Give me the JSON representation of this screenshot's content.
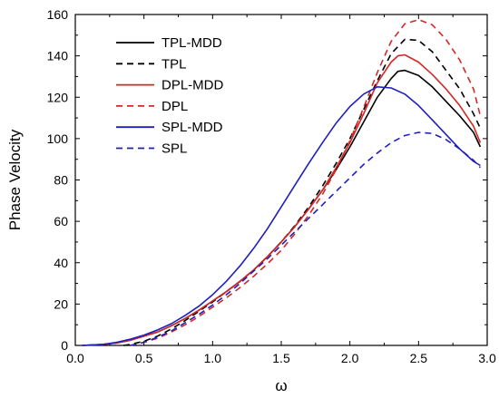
{
  "chart_data": {
    "type": "line",
    "xlabel": "ω",
    "ylabel": "Phase Velocity",
    "xlim": [
      0.0,
      3.0
    ],
    "ylim": [
      0,
      160
    ],
    "xticks": [
      "0.0",
      "0.5",
      "1.0",
      "1.5",
      "2.0",
      "2.5",
      "3.0"
    ],
    "yticks": [
      "0",
      "20",
      "40",
      "60",
      "80",
      "100",
      "120",
      "140",
      "160"
    ],
    "grid": false,
    "legend_position": "top-left",
    "series": [
      {
        "name": "TPL-MDD",
        "color": "#000000",
        "dash": "solid",
        "x": [
          0.05,
          0.2,
          0.3,
          0.4,
          0.5,
          0.6,
          0.7,
          0.8,
          0.9,
          1.0,
          1.1,
          1.2,
          1.3,
          1.4,
          1.5,
          1.6,
          1.7,
          1.8,
          1.9,
          2.0,
          2.1,
          2.2,
          2.3,
          2.35,
          2.4,
          2.5,
          2.6,
          2.7,
          2.8,
          2.9,
          2.95
        ],
        "y": [
          0,
          0.5,
          1.2,
          2.5,
          4.5,
          6.5,
          9.5,
          13,
          17,
          21.5,
          26,
          31,
          36.5,
          43,
          50,
          57.5,
          66,
          75,
          85,
          96,
          108,
          120,
          129,
          132.5,
          133,
          130.5,
          125,
          118,
          111,
          103,
          96
        ]
      },
      {
        "name": "TPL",
        "color": "#000000",
        "dash": "dashed",
        "x": [
          0.35,
          0.4,
          0.5,
          0.6,
          0.7,
          0.8,
          0.9,
          1.0,
          1.1,
          1.2,
          1.3,
          1.4,
          1.5,
          1.6,
          1.7,
          1.8,
          1.9,
          2.0,
          2.1,
          2.2,
          2.3,
          2.4,
          2.5,
          2.6,
          2.7,
          2.8,
          2.9,
          2.95
        ],
        "y": [
          0,
          0.5,
          2,
          4.5,
          8,
          12,
          16.5,
          21,
          26,
          31,
          36.5,
          43,
          50,
          58,
          67,
          77,
          88,
          100,
          114,
          128,
          141,
          148,
          147.5,
          142,
          133,
          124,
          112,
          105
        ]
      },
      {
        "name": "DPL-MDD",
        "color": "#d62728",
        "dash": "solid",
        "x": [
          0.05,
          0.2,
          0.3,
          0.4,
          0.5,
          0.6,
          0.7,
          0.8,
          0.9,
          1.0,
          1.1,
          1.2,
          1.3,
          1.4,
          1.5,
          1.6,
          1.7,
          1.8,
          1.9,
          2.0,
          2.1,
          2.2,
          2.3,
          2.35,
          2.4,
          2.5,
          2.6,
          2.7,
          2.8,
          2.9,
          2.95
        ],
        "y": [
          0,
          0.5,
          1.2,
          2.5,
          4.5,
          6.5,
          9.5,
          13,
          17,
          21.5,
          26,
          31,
          36.5,
          43,
          50,
          57.5,
          66,
          75,
          86,
          98,
          112,
          127,
          137,
          140,
          140.5,
          137,
          131,
          124,
          116,
          106,
          98
        ]
      },
      {
        "name": "DPL",
        "color": "#d62728",
        "dash": "dashed",
        "x": [
          0.4,
          0.5,
          0.6,
          0.7,
          0.8,
          0.9,
          1.0,
          1.1,
          1.2,
          1.3,
          1.4,
          1.5,
          1.6,
          1.7,
          1.8,
          1.9,
          2.0,
          2.1,
          2.2,
          2.3,
          2.4,
          2.5,
          2.6,
          2.7,
          2.8,
          2.9,
          2.95
        ],
        "y": [
          0,
          1.5,
          3.5,
          6.5,
          10,
          14,
          18.5,
          23,
          28,
          33.5,
          39.5,
          46,
          54,
          63,
          73,
          85,
          99,
          115,
          132,
          147,
          155.5,
          157.5,
          155,
          148,
          138,
          124,
          111
        ]
      },
      {
        "name": "SPL-MDD",
        "color": "#1f1fbf",
        "dash": "solid",
        "x": [
          0.05,
          0.2,
          0.3,
          0.4,
          0.5,
          0.6,
          0.7,
          0.8,
          0.9,
          1.0,
          1.1,
          1.2,
          1.3,
          1.4,
          1.5,
          1.6,
          1.7,
          1.8,
          1.9,
          2.0,
          2.1,
          2.2,
          2.3,
          2.4,
          2.5,
          2.6,
          2.7,
          2.8,
          2.9,
          2.95
        ],
        "y": [
          0,
          0.5,
          1.5,
          3,
          5,
          7.5,
          10.5,
          14.5,
          19,
          24.5,
          31,
          38.5,
          47,
          56.5,
          67,
          77.5,
          88,
          98,
          107.5,
          115.5,
          121.5,
          125,
          124.5,
          121.5,
          116,
          109,
          102,
          95,
          89,
          87
        ]
      },
      {
        "name": "SPL",
        "color": "#1f1fbf",
        "dash": "dashed",
        "x": [
          0.4,
          0.5,
          0.6,
          0.7,
          0.8,
          0.9,
          1.0,
          1.1,
          1.2,
          1.3,
          1.4,
          1.5,
          1.6,
          1.7,
          1.8,
          1.9,
          2.0,
          2.1,
          2.2,
          2.3,
          2.4,
          2.5,
          2.6,
          2.7,
          2.8,
          2.9,
          2.95
        ],
        "y": [
          0,
          1.5,
          4,
          7,
          11,
          15,
          19.5,
          24.5,
          30,
          36,
          42,
          48.5,
          55,
          61.5,
          68,
          74.5,
          81,
          87.5,
          93,
          98,
          101.5,
          103,
          102.5,
          99.5,
          95,
          89.5,
          86
        ]
      }
    ]
  }
}
